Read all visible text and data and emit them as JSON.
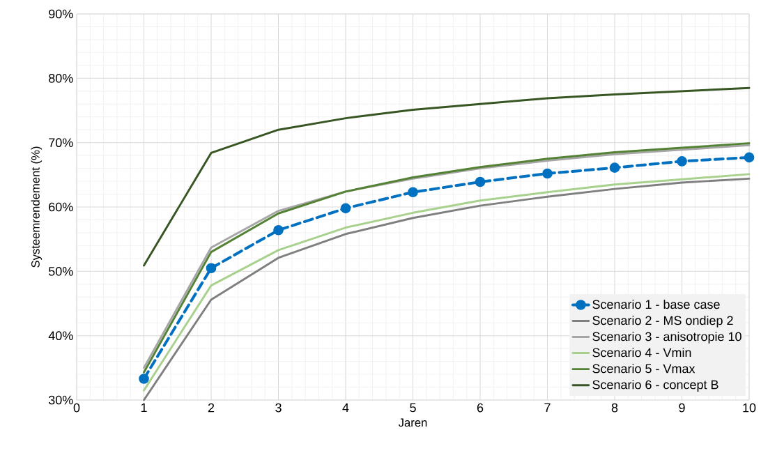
{
  "chart_data": {
    "type": "line",
    "xlabel": "Jaren",
    "ylabel": "Systeemrendement (%)",
    "x": [
      1,
      2,
      3,
      4,
      5,
      6,
      7,
      8,
      9,
      10
    ],
    "xlim": [
      0,
      10
    ],
    "xticks": [
      0,
      1,
      2,
      3,
      4,
      5,
      6,
      7,
      8,
      9,
      10
    ],
    "ylim": [
      30,
      90
    ],
    "yticks": [
      {
        "value": 30,
        "label": "30%"
      },
      {
        "value": 40,
        "label": "40%"
      },
      {
        "value": 50,
        "label": "50%"
      },
      {
        "value": 60,
        "label": "60%"
      },
      {
        "value": 70,
        "label": "70%"
      },
      {
        "value": 80,
        "label": "80%"
      },
      {
        "value": 90,
        "label": "90%"
      }
    ],
    "grid": true,
    "legend": "bottom right",
    "series": [
      {
        "name": "Scenario 1 - base case",
        "color": "#0070c0",
        "marker": "circle",
        "line_style": "dashed",
        "values": [
          33.3,
          50.5,
          56.4,
          59.8,
          62.3,
          63.9,
          65.2,
          66.1,
          67.1,
          67.7
        ]
      },
      {
        "name": "Scenario 2 - MS ondiep 2",
        "color": "#7f7f7f",
        "values": [
          30.0,
          45.6,
          52.1,
          55.8,
          58.3,
          60.2,
          61.6,
          62.8,
          63.8,
          64.4
        ]
      },
      {
        "name": "Scenario 3 - anisotropie 10",
        "color": "#a6a6a6",
        "values": [
          35.0,
          53.7,
          59.4,
          62.4,
          64.4,
          66.0,
          67.2,
          68.2,
          68.9,
          69.6
        ]
      },
      {
        "name": "Scenario 4 - Vmin",
        "color": "#a9d18e",
        "values": [
          31.5,
          47.8,
          53.3,
          56.8,
          59.1,
          61.0,
          62.3,
          63.5,
          64.3,
          65.1
        ]
      },
      {
        "name": "Scenario 5 - Vmax",
        "color": "#548235",
        "values": [
          34.3,
          53.0,
          59.0,
          62.4,
          64.6,
          66.2,
          67.5,
          68.5,
          69.2,
          69.9
        ]
      },
      {
        "name": "Scenario 6 - concept B",
        "color": "#375623",
        "values": [
          50.9,
          68.4,
          72.0,
          73.8,
          75.1,
          76.0,
          76.9,
          77.5,
          78.0,
          78.5
        ]
      }
    ]
  }
}
